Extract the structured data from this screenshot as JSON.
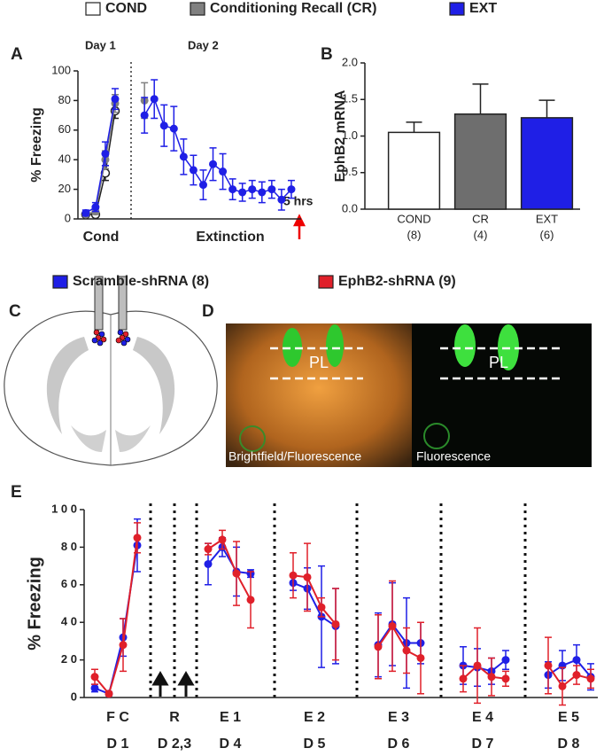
{
  "chart_data": [
    {
      "type": "line",
      "panel": "A",
      "ylabel": "% Freezing",
      "annotations": {
        "day1": "Day 1",
        "day2": "Day 2",
        "cond": "Cond",
        "extinction": "Extinction",
        "delay": "5 hrs"
      },
      "x": [
        1,
        2,
        3,
        4,
        7,
        8,
        9,
        10,
        11,
        12,
        13,
        14,
        15,
        16,
        17,
        18,
        19,
        20,
        21,
        22
      ],
      "xlim": [
        0.2,
        23
      ],
      "ylim": [
        0,
        100
      ],
      "yticks": [
        0,
        20,
        40,
        60,
        80,
        100
      ],
      "series": [
        {
          "name": "COND",
          "color": "#ffffff",
          "values": [
            3,
            3,
            31,
            73,
            null,
            null,
            null,
            null,
            null,
            null,
            null,
            null,
            null,
            null,
            null,
            null,
            null,
            null,
            null,
            null
          ],
          "errors": [
            1,
            1,
            5,
            5,
            null,
            null,
            null,
            null,
            null,
            null,
            null,
            null,
            null,
            null,
            null,
            null,
            null,
            null,
            null,
            null
          ]
        },
        {
          "name": "Conditioning Recall (CR)",
          "color": "#808080",
          "values": [
            3,
            5,
            40,
            78,
            80,
            null,
            null,
            null,
            null,
            null,
            null,
            null,
            null,
            null,
            null,
            null,
            null,
            null,
            null,
            null
          ],
          "errors": [
            1,
            2,
            6,
            6,
            12,
            null,
            null,
            null,
            null,
            null,
            null,
            null,
            null,
            null,
            null,
            null,
            null,
            null,
            null,
            null
          ]
        },
        {
          "name": "EXT",
          "color": "#1f1fe6",
          "values": [
            4,
            8,
            44,
            81,
            70,
            81,
            63,
            61,
            42,
            33,
            23,
            37,
            32,
            20,
            18,
            20,
            18,
            20,
            13,
            20
          ],
          "errors": [
            2,
            3,
            8,
            7,
            12,
            13,
            14,
            15,
            12,
            10,
            10,
            11,
            12,
            7,
            6,
            6,
            7,
            6,
            7,
            6
          ]
        }
      ]
    },
    {
      "type": "bar",
      "panel": "B",
      "ylabel": "EphB2 mRNA",
      "categories": [
        "COND",
        "CR",
        "EXT"
      ],
      "group_sizes": [
        "(8)",
        "(4)",
        "(6)"
      ],
      "values": [
        1.05,
        1.3,
        1.25
      ],
      "errors": [
        0.14,
        0.41,
        0.24
      ],
      "colors": [
        "#ffffff",
        "#6e6e6e",
        "#1f1fe6"
      ],
      "ylim": [
        0,
        2
      ],
      "yticks": [
        {
          "value": 0,
          "label": "0.0"
        },
        {
          "value": 0.5,
          "label": "0.5"
        },
        {
          "value": 1,
          "label": "1.0"
        },
        {
          "value": 1.5,
          "label": "1.5"
        },
        {
          "value": 2,
          "label": "2.0"
        }
      ]
    },
    {
      "type": "line",
      "panel": "E",
      "ylabel": "% Freezing",
      "groups": [
        {
          "session": "F C",
          "day": "D 1"
        },
        {
          "session": "R",
          "day": "D 2,3"
        },
        {
          "session": "E 1",
          "day": "D 4"
        },
        {
          "session": "E 2",
          "day": "D 5"
        },
        {
          "session": "E 3",
          "day": "D 6"
        },
        {
          "session": "E 4",
          "day": "D 7"
        },
        {
          "session": "E 5",
          "day": "D 8"
        }
      ],
      "x": [
        1,
        2,
        3,
        4,
        9,
        10,
        11,
        12,
        15,
        16,
        17,
        18,
        21,
        22,
        23,
        24,
        27,
        28,
        29,
        30,
        33,
        34,
        35,
        36
      ],
      "xlim": [
        0.25,
        36.5
      ],
      "ylim": [
        0,
        100
      ],
      "yticks": [
        0,
        {
          "value": 20,
          "label": "2 0"
        },
        {
          "value": 40,
          "label": "4 0"
        },
        {
          "value": 60,
          "label": "6 0"
        },
        {
          "value": 80,
          "label": "8 0"
        },
        {
          "value": 100,
          "label": "1 0 0"
        }
      ],
      "series": [
        {
          "name": "Scramble-shRNA (8)",
          "color": "#1f1fe6",
          "values": [
            5,
            2,
            32,
            81,
            71,
            80,
            67,
            66,
            61,
            58,
            43,
            38,
            28,
            39,
            29,
            29,
            17,
            16,
            14,
            20,
            12,
            17,
            20,
            11
          ],
          "errors": [
            2,
            1,
            10,
            14,
            11,
            5,
            13,
            2,
            4,
            11,
            27,
            20,
            17,
            22,
            24,
            11,
            10,
            10,
            7,
            5,
            7,
            8,
            8,
            7
          ]
        },
        {
          "name": "EphB2-shRNA (9)",
          "color": "#e0202a",
          "values": [
            11,
            2,
            28,
            85,
            79,
            84,
            66,
            52,
            65,
            64,
            48,
            39,
            27,
            38,
            25,
            21,
            10,
            17,
            11,
            10,
            17,
            6,
            12,
            10
          ],
          "errors": [
            4,
            1,
            14,
            8,
            3,
            5,
            17,
            15,
            12,
            18,
            5,
            19,
            17,
            24,
            12,
            19,
            7,
            20,
            10,
            4,
            15,
            10,
            5,
            5
          ]
        }
      ]
    }
  ],
  "panels": {
    "C": {
      "label": "C"
    },
    "D": {
      "label": "D",
      "region": "PL",
      "region_right": "PL",
      "left_caption": "Brightfield/Fluorescence",
      "right_caption": "Fluorescence"
    }
  }
}
